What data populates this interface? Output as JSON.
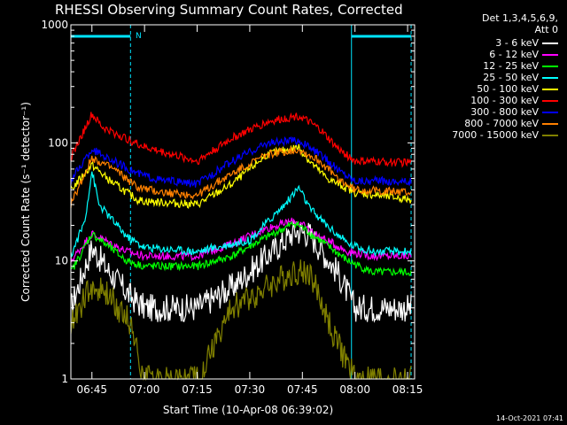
{
  "title": "RHESSI Observing Summary Count Rates, Corrected",
  "legend_header": "Det 1,3,4,5,6,9,\nAtt 0",
  "footer": "14-Oct-2021 07:41",
  "colors": {
    "background": "#000000",
    "axes": "#ffffff",
    "cyan_marker": "#00e5ff"
  },
  "chart_data": {
    "type": "line",
    "xlabel": "Start Time (10-Apr-08 06:39:02)",
    "ylabel": "Corrected Count Rate (s⁻¹ detector⁻¹)",
    "xlim": [
      "06:39",
      "08:17"
    ],
    "ylim": [
      1,
      1000
    ],
    "yscale": "log",
    "x_ticks": [
      "06:45",
      "07:00",
      "07:15",
      "07:30",
      "07:45",
      "08:00",
      "08:15"
    ],
    "y_ticks": [
      "1",
      "10",
      "100",
      "1000"
    ],
    "legend_position": "right",
    "grid": false,
    "markers": {
      "attenuator_bars": [
        {
          "start": "06:39",
          "end": "06:56"
        },
        {
          "start": "07:59",
          "end": "08:16"
        }
      ],
      "night_lines": [
        "06:39",
        "06:56",
        "07:59",
        "08:16"
      ],
      "label": "N"
    },
    "series": [
      {
        "name": "3 - 6 keV",
        "color": "#ffffff",
        "points": [
          [
            "06:39",
            4
          ],
          [
            "06:45",
            13
          ],
          [
            "06:50",
            8
          ],
          [
            "06:56",
            5
          ],
          [
            "07:00",
            4
          ],
          [
            "07:15",
            4
          ],
          [
            "07:25",
            6
          ],
          [
            "07:35",
            11
          ],
          [
            "07:43",
            18
          ],
          [
            "07:47",
            17
          ],
          [
            "07:55",
            8
          ],
          [
            "08:00",
            4
          ],
          [
            "08:16",
            4
          ]
        ]
      },
      {
        "name": "6 - 12 keV",
        "color": "#ff00ff",
        "points": [
          [
            "06:39",
            10
          ],
          [
            "06:45",
            17
          ],
          [
            "06:55",
            12
          ],
          [
            "07:00",
            11
          ],
          [
            "07:15",
            11
          ],
          [
            "07:25",
            14
          ],
          [
            "07:35",
            19
          ],
          [
            "07:43",
            22
          ],
          [
            "07:50",
            16
          ],
          [
            "07:58",
            12
          ],
          [
            "08:05",
            11
          ],
          [
            "08:16",
            11
          ]
        ]
      },
      {
        "name": "12 - 25 keV",
        "color": "#00ff00",
        "points": [
          [
            "06:39",
            8
          ],
          [
            "06:45",
            17
          ],
          [
            "06:55",
            10
          ],
          [
            "07:00",
            9
          ],
          [
            "07:15",
            9
          ],
          [
            "07:25",
            11
          ],
          [
            "07:35",
            16
          ],
          [
            "07:43",
            21
          ],
          [
            "07:50",
            15
          ],
          [
            "07:58",
            10
          ],
          [
            "08:05",
            8
          ],
          [
            "08:16",
            8
          ]
        ]
      },
      {
        "name": "25 - 50 keV",
        "color": "#00ffff",
        "points": [
          [
            "06:39",
            11
          ],
          [
            "06:43",
            22
          ],
          [
            "06:45",
            58
          ],
          [
            "06:47",
            30
          ],
          [
            "06:55",
            16
          ],
          [
            "07:00",
            13
          ],
          [
            "07:15",
            12
          ],
          [
            "07:30",
            15
          ],
          [
            "07:40",
            30
          ],
          [
            "07:44",
            42
          ],
          [
            "07:47",
            28
          ],
          [
            "07:52",
            20
          ],
          [
            "07:58",
            14
          ],
          [
            "08:05",
            12
          ],
          [
            "08:16",
            12
          ]
        ]
      },
      {
        "name": "50 - 100 keV",
        "color": "#ffff00",
        "points": [
          [
            "06:39",
            40
          ],
          [
            "06:45",
            65
          ],
          [
            "06:50",
            48
          ],
          [
            "06:58",
            33
          ],
          [
            "07:00",
            32
          ],
          [
            "07:15",
            30
          ],
          [
            "07:25",
            45
          ],
          [
            "07:35",
            80
          ],
          [
            "07:44",
            92
          ],
          [
            "07:47",
            70
          ],
          [
            "07:52",
            50
          ],
          [
            "08:00",
            38
          ],
          [
            "08:16",
            33
          ]
        ]
      },
      {
        "name": "100 - 300 keV",
        "color": "#ff0000",
        "points": [
          [
            "06:39",
            75
          ],
          [
            "06:45",
            175
          ],
          [
            "06:48",
            135
          ],
          [
            "06:55",
            108
          ],
          [
            "07:00",
            92
          ],
          [
            "07:15",
            70
          ],
          [
            "07:25",
            110
          ],
          [
            "07:35",
            150
          ],
          [
            "07:44",
            170
          ],
          [
            "07:50",
            130
          ],
          [
            "07:55",
            90
          ],
          [
            "08:00",
            70
          ],
          [
            "08:16",
            68
          ]
        ]
      },
      {
        "name": "300 - 800 keV",
        "color": "#0000ff",
        "points": [
          [
            "06:39",
            48
          ],
          [
            "06:45",
            88
          ],
          [
            "06:52",
            68
          ],
          [
            "06:58",
            55
          ],
          [
            "07:05",
            48
          ],
          [
            "07:15",
            45
          ],
          [
            "07:25",
            70
          ],
          [
            "07:35",
            100
          ],
          [
            "07:44",
            105
          ],
          [
            "07:50",
            80
          ],
          [
            "07:55",
            60
          ],
          [
            "08:00",
            48
          ],
          [
            "08:16",
            47
          ]
        ]
      },
      {
        "name": "800 - 7000 keV",
        "color": "#ff8000",
        "points": [
          [
            "06:39",
            30
          ],
          [
            "06:45",
            75
          ],
          [
            "06:52",
            58
          ],
          [
            "06:58",
            42
          ],
          [
            "07:05",
            38
          ],
          [
            "07:15",
            36
          ],
          [
            "07:25",
            55
          ],
          [
            "07:35",
            80
          ],
          [
            "07:44",
            88
          ],
          [
            "07:50",
            70
          ],
          [
            "07:55",
            50
          ],
          [
            "08:00",
            40
          ],
          [
            "08:16",
            38
          ]
        ]
      },
      {
        "name": "7000 - 15000 keV",
        "color": "#808000",
        "points": [
          [
            "06:39",
            3
          ],
          [
            "06:45",
            6
          ],
          [
            "06:50",
            5
          ],
          [
            "06:56",
            3
          ],
          [
            "07:00",
            1
          ],
          [
            "07:15",
            1
          ],
          [
            "07:25",
            4
          ],
          [
            "07:35",
            6
          ],
          [
            "07:42",
            8
          ],
          [
            "07:47",
            8
          ],
          [
            "07:55",
            2
          ],
          [
            "08:00",
            1
          ],
          [
            "08:16",
            1
          ]
        ]
      }
    ]
  }
}
